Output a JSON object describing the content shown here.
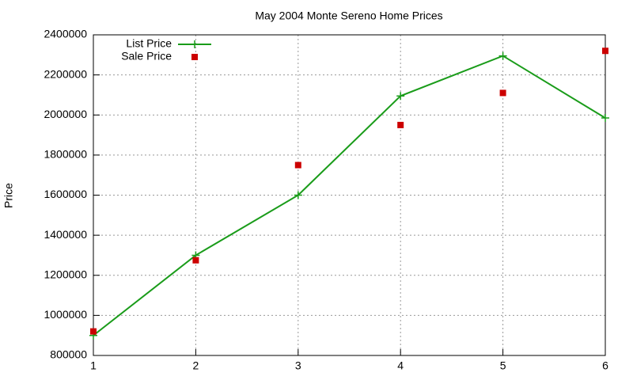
{
  "chart_data": {
    "type": "line",
    "title": "May 2004 Monte Sereno Home Prices",
    "y_label": "Price",
    "x": [
      1,
      2,
      3,
      4,
      5,
      6
    ],
    "series": [
      {
        "name": "List Price",
        "color": "#1a9c1a",
        "style": "linespoints",
        "values": [
          900000,
          1300000,
          1600000,
          2095000,
          2295000,
          1985000
        ]
      },
      {
        "name": "Sale Price",
        "color": "#cc0000",
        "style": "points",
        "values": [
          920000,
          1275000,
          1750000,
          1950000,
          2110000,
          2320000
        ]
      }
    ],
    "xlim": [
      1,
      6
    ],
    "xticks": [
      1,
      2,
      3,
      4,
      5,
      6
    ],
    "ylim": [
      800000,
      2400000
    ],
    "yticks": [
      800000,
      1000000,
      1200000,
      1400000,
      1600000,
      1800000,
      2000000,
      2200000,
      2400000
    ],
    "grid": true,
    "legend": "top-left"
  }
}
